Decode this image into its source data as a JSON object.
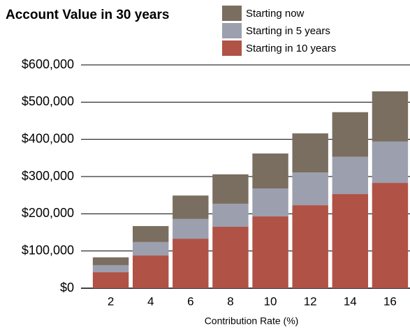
{
  "chart_data": {
    "type": "stacked_bar",
    "title": "Account Value in 30 years",
    "x_label": "Contribution Rate (%)",
    "categories": [
      "2",
      "4",
      "6",
      "8",
      "10",
      "12",
      "14",
      "16"
    ],
    "series": [
      {
        "name": "Starting now",
        "color": "#7a6e60",
        "values": [
          21000,
          43000,
          63000,
          79000,
          94000,
          105000,
          120000,
          135000
        ]
      },
      {
        "name": "Starting in 5 years",
        "color": "#9c9fae",
        "values": [
          19000,
          36000,
          53000,
          62000,
          75000,
          88000,
          100000,
          111000
        ]
      },
      {
        "name": "Starting in 10 years",
        "color": "#b05245",
        "values": [
          43000,
          88000,
          133000,
          165000,
          193000,
          223000,
          253000,
          283000
        ]
      }
    ],
    "ylim": [
      0,
      600000
    ],
    "yticks": [
      {
        "value": 0,
        "label": "$0"
      },
      {
        "value": 100000,
        "label": "$100,000"
      },
      {
        "value": 200000,
        "label": "$200,000"
      },
      {
        "value": 300000,
        "label": "$300,000"
      },
      {
        "value": 400000,
        "label": "$400,000"
      },
      {
        "value": 500000,
        "label": "$500,000"
      },
      {
        "value": 600000,
        "label": "$600,000"
      }
    ],
    "grid": true
  }
}
